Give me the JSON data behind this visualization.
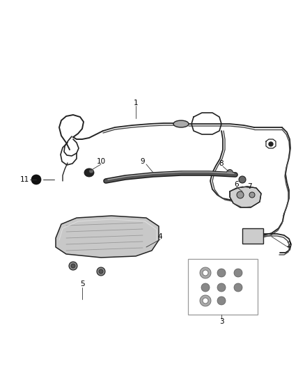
{
  "bg_color": "#ffffff",
  "line_color": "#444444",
  "label_color": "#000000",
  "dark_color": "#222222",
  "mid_color": "#888888",
  "light_color": "#bbbbbb"
}
